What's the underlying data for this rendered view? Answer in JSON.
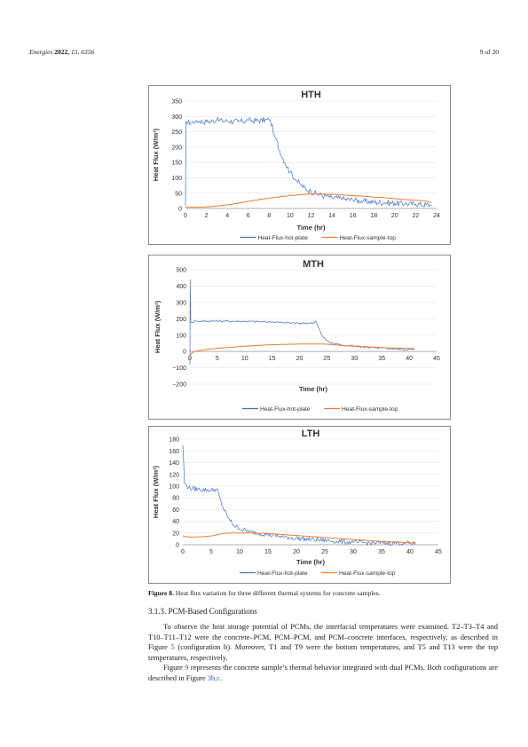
{
  "header": {
    "journal": "Energies",
    "year_vol": "2022,",
    "volume_issue": "15, 6356",
    "page": "9 of 20"
  },
  "colors": {
    "hot_plate": "#4472c4",
    "sample_top": "#ed7d31",
    "grid": "#e6e6e6"
  },
  "chart_data": [
    {
      "type": "line",
      "title": "HTH",
      "xlabel": "Time (hr)",
      "ylabel": "Heat Flux (W/m²)",
      "xlim": [
        0,
        24
      ],
      "ylim": [
        0,
        350
      ],
      "xticks": [
        0,
        2,
        4,
        6,
        8,
        10,
        12,
        14,
        16,
        18,
        20,
        22,
        24
      ],
      "yticks": [
        0,
        50,
        100,
        150,
        200,
        250,
        300,
        350
      ],
      "grid": true,
      "legend": "bottom",
      "series": [
        {
          "name": "Heat-Flux-hot-plate",
          "color": "#4472c4",
          "noise": 10,
          "points": [
            [
              0,
              10
            ],
            [
              0.05,
              285
            ],
            [
              0.5,
              278
            ],
            [
              1,
              287
            ],
            [
              2,
              282
            ],
            [
              3,
              288
            ],
            [
              4,
              285
            ],
            [
              5,
              283
            ],
            [
              6,
              287
            ],
            [
              7,
              286
            ],
            [
              8,
              289
            ],
            [
              8.1,
              289
            ],
            [
              8.5,
              240
            ],
            [
              9,
              190
            ],
            [
              9.5,
              150
            ],
            [
              10,
              118
            ],
            [
              10.5,
              95
            ],
            [
              11,
              77
            ],
            [
              11.5,
              64
            ],
            [
              12,
              55
            ],
            [
              12.5,
              48
            ],
            [
              13,
              43
            ],
            [
              13.5,
              39
            ],
            [
              14,
              36
            ],
            [
              15,
              31
            ],
            [
              16,
              27
            ],
            [
              17,
              24
            ],
            [
              18,
              21
            ],
            [
              19,
              19
            ],
            [
              20,
              17
            ],
            [
              21,
              15
            ],
            [
              22,
              14
            ],
            [
              23,
              12
            ],
            [
              23.5,
              11
            ]
          ]
        },
        {
          "name": "Heat-Flux-sample-top",
          "color": "#ed7d31",
          "noise": 0,
          "points": [
            [
              0,
              5
            ],
            [
              1,
              4
            ],
            [
              2,
              5
            ],
            [
              3,
              8
            ],
            [
              4,
              12
            ],
            [
              5,
              17
            ],
            [
              6,
              23
            ],
            [
              7,
              29
            ],
            [
              8,
              34
            ],
            [
              9,
              38
            ],
            [
              10,
              42
            ],
            [
              11,
              45
            ],
            [
              12,
              47
            ],
            [
              13,
              47
            ],
            [
              14,
              46
            ],
            [
              15,
              44
            ],
            [
              16,
              42
            ],
            [
              17,
              40
            ],
            [
              18,
              37
            ],
            [
              19,
              35
            ],
            [
              20,
              32
            ],
            [
              21,
              29
            ],
            [
              22,
              27
            ],
            [
              23,
              24
            ],
            [
              23.5,
              19
            ]
          ]
        }
      ]
    },
    {
      "type": "line",
      "title": "MTH",
      "xlabel": "Time (hr)",
      "ylabel": "Heat Flux (W/m²)",
      "xlim": [
        0,
        45
      ],
      "ylim": [
        -200,
        500
      ],
      "xticks": [
        0,
        5,
        10,
        15,
        20,
        25,
        30,
        35,
        40,
        45
      ],
      "yticks": [
        -200,
        -100,
        0,
        100,
        200,
        300,
        400,
        500
      ],
      "grid": true,
      "legend": "bottom",
      "series": [
        {
          "name": "Heat-Flux-hot-plate",
          "color": "#4472c4",
          "noise": 6,
          "points": [
            [
              0,
              -80
            ],
            [
              0.05,
              440
            ],
            [
              0.15,
              180
            ],
            [
              1,
              185
            ],
            [
              5,
              186
            ],
            [
              10,
              184
            ],
            [
              15,
              180
            ],
            [
              20,
              172
            ],
            [
              22.5,
              175
            ],
            [
              23,
              185
            ],
            [
              23.3,
              160
            ],
            [
              24,
              100
            ],
            [
              25,
              65
            ],
            [
              26,
              50
            ],
            [
              28,
              38
            ],
            [
              30,
              32
            ],
            [
              32,
              27
            ],
            [
              34,
              22
            ],
            [
              36,
              18
            ],
            [
              38,
              15
            ],
            [
              40,
              12
            ],
            [
              41,
              11
            ]
          ]
        },
        {
          "name": "Heat-Flux-sample-top",
          "color": "#ed7d31",
          "noise": 0,
          "points": [
            [
              0,
              -30
            ],
            [
              0.3,
              -10
            ],
            [
              1,
              2
            ],
            [
              3,
              12
            ],
            [
              6,
              22
            ],
            [
              10,
              32
            ],
            [
              14,
              40
            ],
            [
              18,
              44
            ],
            [
              22,
              46
            ],
            [
              24,
              46
            ],
            [
              26,
              42
            ],
            [
              28,
              36
            ],
            [
              30,
              32
            ],
            [
              33,
              27
            ],
            [
              36,
              22
            ],
            [
              38,
              20
            ],
            [
              41,
              17
            ]
          ]
        }
      ]
    },
    {
      "type": "line",
      "title": "LTH",
      "xlabel": "Time (hr)",
      "ylabel": "Heat Flux (W/m²)",
      "xlim": [
        0,
        45
      ],
      "ylim": [
        0,
        180
      ],
      "xticks": [
        0,
        5,
        10,
        15,
        20,
        25,
        30,
        35,
        40,
        45
      ],
      "yticks": [
        0,
        20,
        40,
        60,
        80,
        100,
        120,
        140,
        160,
        180
      ],
      "grid": true,
      "legend": "bottom",
      "series": [
        {
          "name": "Heat-Flux-hot-plate",
          "color": "#4472c4",
          "noise": 4,
          "points": [
            [
              0,
              170
            ],
            [
              0.3,
              105
            ],
            [
              1,
              97
            ],
            [
              3,
              94
            ],
            [
              5,
              93
            ],
            [
              6,
              95
            ],
            [
              6.5,
              80
            ],
            [
              7,
              65
            ],
            [
              8,
              45
            ],
            [
              9,
              33
            ],
            [
              10,
              27
            ],
            [
              12,
              22
            ],
            [
              15,
              17
            ],
            [
              18,
              13
            ],
            [
              21,
              10
            ],
            [
              24,
              8
            ],
            [
              27,
              6
            ],
            [
              30,
              4
            ],
            [
              33,
              3
            ],
            [
              36,
              3
            ],
            [
              39,
              3
            ],
            [
              41,
              2
            ]
          ]
        },
        {
          "name": "Heat-Flux-sample-top",
          "color": "#ed7d31",
          "noise": 0,
          "points": [
            [
              0,
              15
            ],
            [
              1,
              13
            ],
            [
              2,
              13
            ],
            [
              4,
              14
            ],
            [
              5,
              15
            ],
            [
              6,
              17
            ],
            [
              7,
              19
            ],
            [
              8,
              20
            ],
            [
              10,
              20
            ],
            [
              12,
              20
            ],
            [
              15,
              19
            ],
            [
              18,
              17
            ],
            [
              21,
              15
            ],
            [
              24,
              13
            ],
            [
              27,
              11
            ],
            [
              30,
              9
            ],
            [
              33,
              7
            ],
            [
              36,
              5
            ],
            [
              39,
              4
            ],
            [
              41,
              3
            ]
          ]
        }
      ]
    }
  ],
  "caption": {
    "label": "Figure 8.",
    "text": "Heat flux variation for three different thermal systems for concrete samples."
  },
  "section": {
    "heading": "3.1.3. PCM-Based Configurations"
  },
  "paragraphs": {
    "p1_a": "To observe the heat storage potential of PCMs, the interfacial temperatures were examined. T2–T3–T4 and T10–T11–T12 were the concrete–PCM, PCM–PCM, and PCM–concrete interfaces, respectively, as described in Figure",
    "p1_ref": "5",
    "p1_b": "(configuration b). Moreover, T1 and T9 were the bottom temperatures, and T5 and T13 were the top temperatures, respectively.",
    "p2_a": "Figure",
    "p2_ref1": "9",
    "p2_b": "represents the concrete sample’s thermal behavior integrated with dual PCMs. Both configurations are described in Figure",
    "p2_ref2": "3b,c",
    "p2_c": "."
  }
}
